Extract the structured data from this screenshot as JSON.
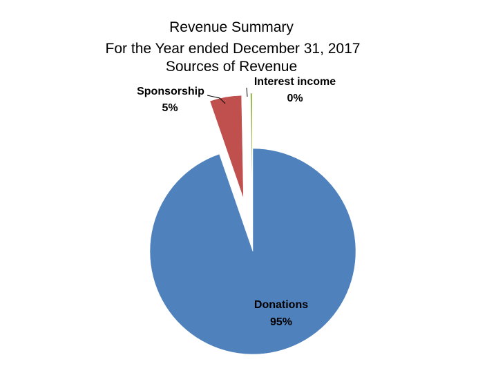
{
  "chart_data": {
    "type": "pie",
    "title_lines": [
      "Revenue Summary",
      "For the Year ended December 31, 2017",
      "Sources of Revenue"
    ],
    "slices": [
      {
        "name": "Donations",
        "value": 95,
        "percent_label": "95%",
        "color": "#4F81BD"
      },
      {
        "name": "Sponsorship",
        "value": 5,
        "percent_label": "5%",
        "color": "#C0504D"
      },
      {
        "name": "Interest income",
        "value": 0.3,
        "percent_label": "0%",
        "color": "#9BBB59"
      }
    ],
    "exploded": true,
    "legend": "none"
  }
}
